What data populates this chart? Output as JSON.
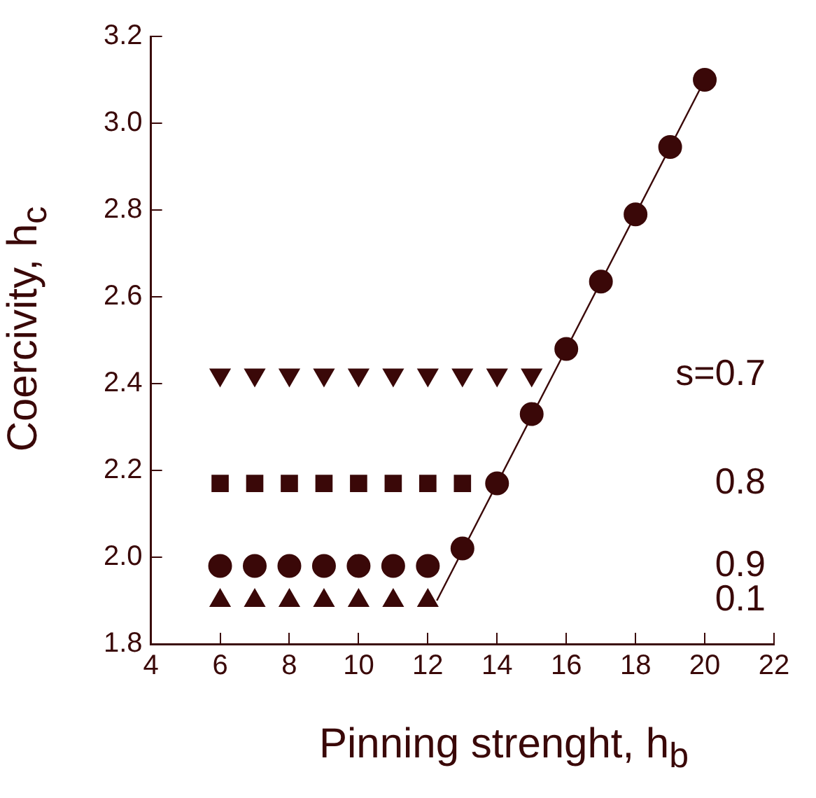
{
  "chart_data": {
    "type": "scatter",
    "xlabel": "Pinning strenght, h$_{b}$",
    "ylabel": "Coercivity, h$_{c}$",
    "xlim": [
      4,
      22
    ],
    "xticks": [
      4,
      6,
      8,
      10,
      12,
      14,
      16,
      18,
      20,
      22
    ],
    "ylim": [
      1.8,
      3.2
    ],
    "yticks": [
      1.8,
      {
        "value": 2,
        "label": "2.0"
      },
      2.2,
      2.4,
      2.6,
      2.8,
      {
        "value": 3,
        "label": "3.0"
      },
      3.2
    ],
    "grid": false,
    "legend": false,
    "series": [
      {
        "type": "line",
        "color": "#3a0808",
        "marker": "none",
        "line_style": "solid",
        "x": [
          12.26,
          20
        ],
        "values": [
          1.9,
          3.1
        ]
      },
      {
        "name": "0.1",
        "color": "#3a0808",
        "marker": "triangle",
        "x": [
          6,
          7,
          8,
          9,
          10,
          11,
          12
        ],
        "values": [
          1.9,
          1.9,
          1.9,
          1.9,
          1.9,
          1.9,
          1.9
        ]
      },
      {
        "name": "0.9",
        "color": "#3a0808",
        "marker": "circle",
        "x": [
          6,
          7,
          8,
          9,
          10,
          11,
          12
        ],
        "values": [
          1.98,
          1.98,
          1.98,
          1.98,
          1.98,
          1.98,
          1.98
        ]
      },
      {
        "name": "0.8",
        "color": "#3a0808",
        "marker": "square",
        "x": [
          6,
          7,
          8,
          9,
          10,
          11,
          12,
          13
        ],
        "values": [
          2.17,
          2.17,
          2.17,
          2.17,
          2.17,
          2.17,
          2.17,
          2.17
        ]
      },
      {
        "name": "s=0.7",
        "color": "#3a0808",
        "marker": "triangle_down",
        "x": [
          6,
          7,
          8,
          9,
          10,
          11,
          12,
          13,
          14,
          15
        ],
        "values": [
          2.42,
          2.42,
          2.42,
          2.42,
          2.42,
          2.42,
          2.42,
          2.42,
          2.42,
          2.42
        ]
      },
      {
        "color": "#3a0808",
        "marker": "circle",
        "x": [
          13,
          14,
          15,
          16,
          17,
          18,
          19,
          20
        ],
        "values": [
          2.02,
          2.17,
          2.33,
          2.48,
          2.635,
          2.79,
          2.945,
          3.1
        ]
      }
    ]
  }
}
